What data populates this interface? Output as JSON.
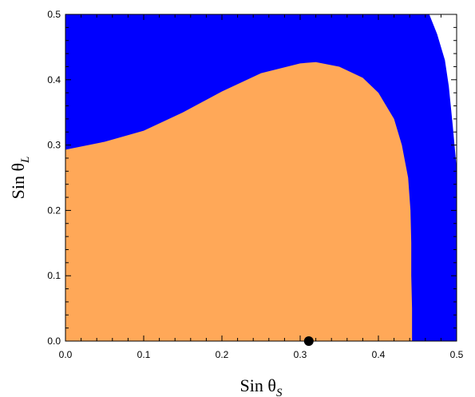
{
  "chart_data": {
    "type": "area",
    "title": "",
    "xlabel": "Sin θ",
    "xlabel_subscript": "S",
    "ylabel": "Sin θ",
    "ylabel_subscript": "L",
    "xlim": [
      0.0,
      0.5
    ],
    "ylim": [
      0.0,
      0.5
    ],
    "x_ticks": [
      "0.0",
      "0.1",
      "0.2",
      "0.3",
      "0.4",
      "0.5"
    ],
    "y_ticks": [
      "0.0",
      "0.1",
      "0.2",
      "0.3",
      "0.4",
      "0.5"
    ],
    "grid": false,
    "legend": "none",
    "regions": [
      {
        "color": "#0000ff",
        "boundary": [
          [
            0.0,
            0.0
          ],
          [
            0.0,
            0.5
          ],
          [
            0.465,
            0.5
          ],
          [
            0.475,
            0.47
          ],
          [
            0.485,
            0.43
          ],
          [
            0.49,
            0.39
          ],
          [
            0.495,
            0.33
          ],
          [
            0.5,
            0.265
          ],
          [
            0.5,
            0.0
          ]
        ]
      },
      {
        "color": "#ffa858",
        "boundary": [
          [
            0.0,
            0.0
          ],
          [
            0.0,
            0.293
          ],
          [
            0.05,
            0.305
          ],
          [
            0.1,
            0.322
          ],
          [
            0.15,
            0.35
          ],
          [
            0.2,
            0.382
          ],
          [
            0.25,
            0.41
          ],
          [
            0.3,
            0.425
          ],
          [
            0.32,
            0.427
          ],
          [
            0.35,
            0.42
          ],
          [
            0.38,
            0.403
          ],
          [
            0.4,
            0.38
          ],
          [
            0.42,
            0.34
          ],
          [
            0.43,
            0.3
          ],
          [
            0.438,
            0.25
          ],
          [
            0.441,
            0.2
          ],
          [
            0.442,
            0.15
          ],
          [
            0.442,
            0.1
          ],
          [
            0.443,
            0.05
          ],
          [
            0.443,
            0.0
          ]
        ]
      }
    ],
    "points": [
      {
        "x": 0.311,
        "y": 0.0,
        "color": "#000000"
      }
    ]
  }
}
